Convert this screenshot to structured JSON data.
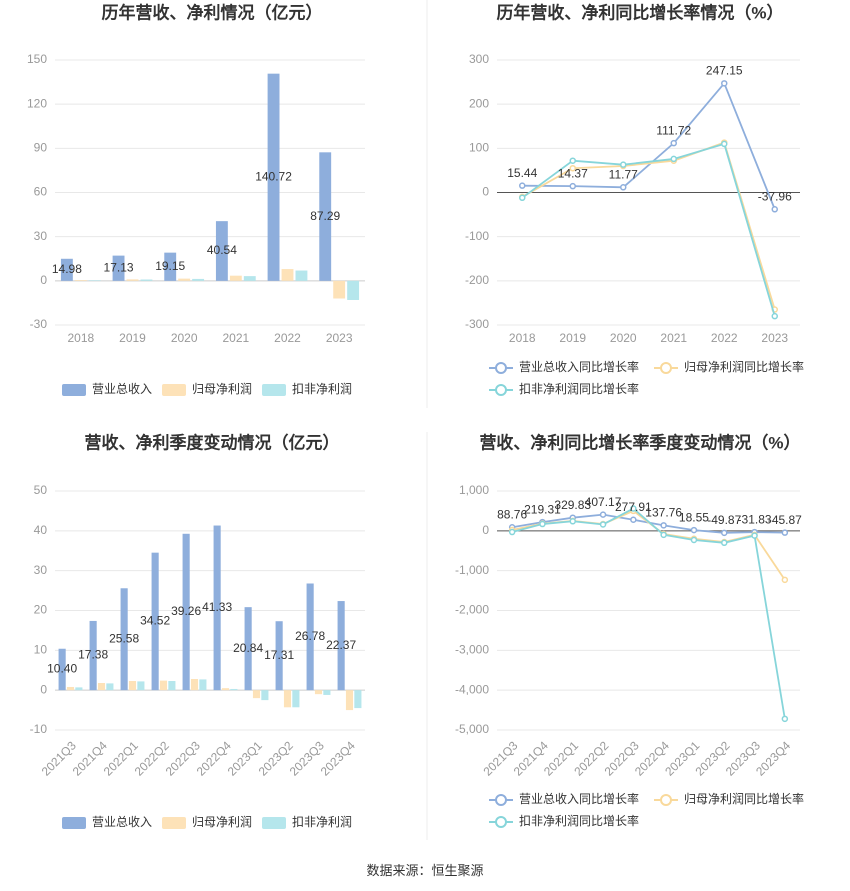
{
  "chart_data": [
    {
      "type": "bar",
      "title": "历年营收、净利情况（亿元）",
      "categories": [
        "2018",
        "2019",
        "2020",
        "2021",
        "2022",
        "2023"
      ],
      "series": [
        {
          "name": "营业总收入",
          "color": "#8eaedc",
          "data_labels": true,
          "values": [
            14.98,
            17.13,
            19.15,
            40.54,
            140.72,
            87.29
          ]
        },
        {
          "name": "归母净利润",
          "color": "#fde2b8",
          "values": [
            0.5,
            1.0,
            1.5,
            3.5,
            8,
            -12
          ]
        },
        {
          "name": "扣非净利润",
          "color": "#b5e6ec",
          "values": [
            0.4,
            0.9,
            1.3,
            3.2,
            7,
            -13
          ]
        }
      ],
      "ylim": [
        -30,
        150
      ],
      "yticks": [
        -30,
        0,
        30,
        60,
        90,
        120,
        150
      ],
      "grid": true
    },
    {
      "type": "line",
      "title": "历年营收、净利同比增长率情况（%）",
      "categories": [
        "2018",
        "2019",
        "2020",
        "2021",
        "2022",
        "2023"
      ],
      "series": [
        {
          "name": "营业总收入同比增长率",
          "color": "#8eaedc",
          "data_labels": true,
          "values": [
            15.44,
            14.37,
            11.77,
            111.72,
            247.15,
            -37.96
          ]
        },
        {
          "name": "归母净利润同比增长率",
          "color": "#f9d99b",
          "values": [
            -10,
            55,
            60,
            72,
            113,
            -265
          ]
        },
        {
          "name": "扣非净利润同比增长率",
          "color": "#86d5da",
          "values": [
            -12,
            72,
            63,
            76,
            110,
            -280
          ]
        }
      ],
      "ylim": [
        -300,
        300
      ],
      "yticks": [
        -300,
        -200,
        -100,
        0,
        100,
        200,
        300
      ],
      "grid": true
    },
    {
      "type": "bar",
      "title": "营收、净利季度变动情况（亿元）",
      "categories": [
        "2021Q3",
        "2021Q4",
        "2022Q1",
        "2022Q2",
        "2022Q3",
        "2022Q4",
        "2023Q1",
        "2023Q2",
        "2023Q3",
        "2023Q4"
      ],
      "series": [
        {
          "name": "营业总收入",
          "color": "#8eaedc",
          "data_labels": true,
          "values": [
            10.4,
            17.38,
            25.58,
            34.52,
            39.26,
            41.33,
            20.84,
            17.31,
            26.78,
            22.37
          ],
          "value_labels": [
            "10.40",
            "17.38",
            "25.58",
            "34.52",
            "39.26",
            "41.33",
            "20.84",
            "17.31",
            "26.78",
            "22.37"
          ]
        },
        {
          "name": "归母净利润",
          "color": "#fde2b8",
          "values": [
            0.8,
            1.8,
            2.3,
            2.4,
            2.8,
            0.5,
            -2,
            -4.3,
            -1,
            -5
          ]
        },
        {
          "name": "扣非净利润",
          "color": "#b5e6ec",
          "values": [
            0.7,
            1.7,
            2.2,
            2.3,
            2.7,
            0.3,
            -2.5,
            -4.3,
            -1.2,
            -4.5
          ]
        }
      ],
      "ylim": [
        -10,
        50
      ],
      "yticks": [
        -10,
        0,
        10,
        20,
        30,
        40,
        50
      ],
      "grid": true,
      "rotate_labels": true
    },
    {
      "type": "line",
      "title": "营收、净利同比增长率季度变动情况（%）",
      "categories": [
        "2021Q3",
        "2021Q4",
        "2022Q1",
        "2022Q2",
        "2022Q3",
        "2022Q4",
        "2023Q1",
        "2023Q2",
        "2023Q3",
        "2023Q4"
      ],
      "series": [
        {
          "name": "营业总收入同比增长率",
          "color": "#8eaedc",
          "data_labels": true,
          "values": [
            88.76,
            219.31,
            329.83,
            407.17,
            277.91,
            137.76,
            18.55,
            -49.87,
            -31.83,
            -45.87
          ]
        },
        {
          "name": "归母净利润同比增长率",
          "color": "#f9d99b",
          "values": [
            20,
            180,
            250,
            170,
            500,
            -80,
            -200,
            -280,
            -100,
            -1230
          ]
        },
        {
          "name": "扣非净利润同比增长率",
          "color": "#86d5da",
          "values": [
            -30,
            170,
            240,
            160,
            560,
            -100,
            -230,
            -300,
            -120,
            -4720
          ]
        }
      ],
      "ylim": [
        -5000,
        1000
      ],
      "yticks": [
        {
          "value": -5000,
          "label": "-5,000"
        },
        {
          "value": -4000,
          "label": "-4,000"
        },
        {
          "value": -3000,
          "label": "-3,000"
        },
        {
          "value": -2000,
          "label": "-2,000"
        },
        {
          "value": -1000,
          "label": "-1,000"
        },
        0,
        {
          "value": 1000,
          "label": "1,000"
        }
      ],
      "grid": true,
      "rotate_labels": true
    }
  ],
  "source": "数据来源：恒生聚源"
}
